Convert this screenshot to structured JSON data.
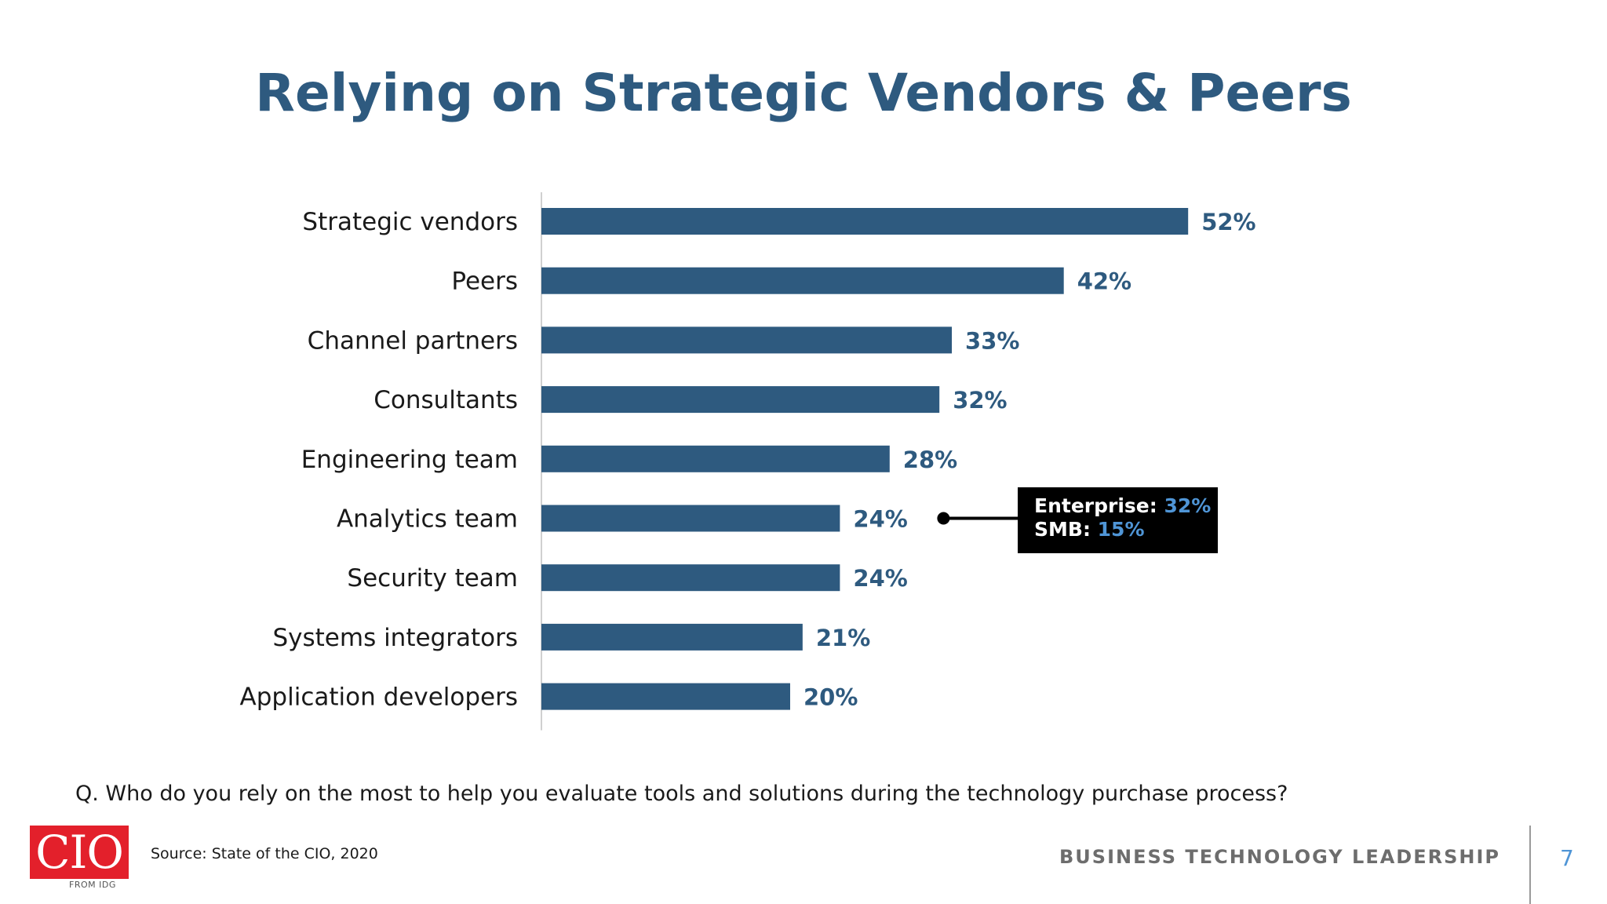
{
  "title": "Relying on Strategic Vendors & Peers",
  "chart_data": {
    "type": "bar",
    "orientation": "horizontal",
    "categories": [
      "Strategic vendors",
      "Peers",
      "Channel partners",
      "Consultants",
      "Engineering team",
      "Analytics team",
      "Security team",
      "Systems integrators",
      "Application developers"
    ],
    "values": [
      52,
      42,
      33,
      32,
      28,
      24,
      24,
      21,
      20
    ],
    "value_labels": [
      "52%",
      "42%",
      "33%",
      "32%",
      "28%",
      "24%",
      "24%",
      "21%",
      "20%"
    ],
    "xlim": [
      0,
      100
    ],
    "grid": false,
    "bar_color": "#2e5a7f",
    "annotation": {
      "category": "Analytics team",
      "line1_label": "Enterprise:",
      "line1_value": "32%",
      "line2_label": "SMB:",
      "line2_value": "15%"
    }
  },
  "question": "Q. Who do you rely on the most to help you evaluate tools and solutions during the technology purchase process?",
  "source": "Source: State of the CIO, 2020",
  "logo": {
    "text": "CIO",
    "subtext": "FROM IDG"
  },
  "tagline": "BUSINESS TECHNOLOGY LEADERSHIP",
  "page_number": "7",
  "colors": {
    "title": "#2e5a7f",
    "bar": "#2e5a7f",
    "callout_highlight": "#4f95d6",
    "logo_red": "#e3202b"
  }
}
